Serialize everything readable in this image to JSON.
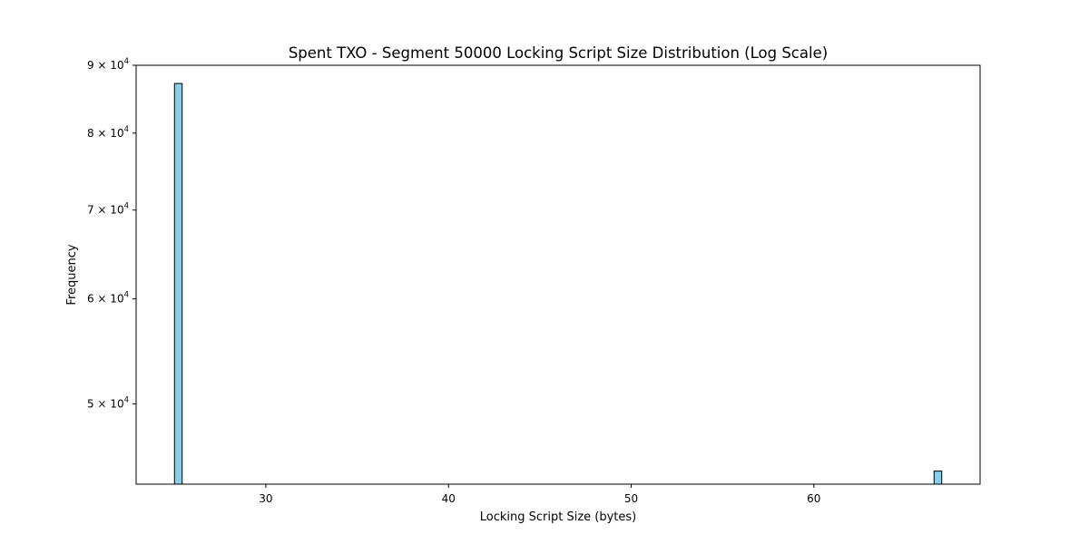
{
  "chart_data": {
    "type": "bar",
    "title": "Spent TXO - Segment 50000 Locking Script Size Distribution (Log Scale)",
    "xlabel": "Locking Script Size (bytes)",
    "ylabel": "Frequency",
    "y_scale": "log",
    "xlim": [
      22.9,
      69.1
    ],
    "ylim": [
      43500,
      90000
    ],
    "grid": false,
    "bar_color": "#87ceeb",
    "bar_edge_color": "#000000",
    "x_ticks": [
      {
        "value": 30,
        "label": "30"
      },
      {
        "value": 40,
        "label": "40"
      },
      {
        "value": 50,
        "label": "50"
      },
      {
        "value": 60,
        "label": "60"
      }
    ],
    "y_ticks": [
      {
        "value": 50000,
        "mantissa": "5",
        "base": "10",
        "exponent": "4"
      },
      {
        "value": 60000,
        "mantissa": "6",
        "base": "10",
        "exponent": "4"
      },
      {
        "value": 70000,
        "mantissa": "7",
        "base": "10",
        "exponent": "4"
      },
      {
        "value": 80000,
        "mantissa": "8",
        "base": "10",
        "exponent": "4"
      },
      {
        "value": 90000,
        "mantissa": "9",
        "base": "10",
        "exponent": "4"
      }
    ],
    "bins": [
      {
        "x0": 25.0,
        "x1": 25.42,
        "count": 87200
      },
      {
        "x0": 66.58,
        "x1": 67.0,
        "count": 44500
      }
    ]
  }
}
